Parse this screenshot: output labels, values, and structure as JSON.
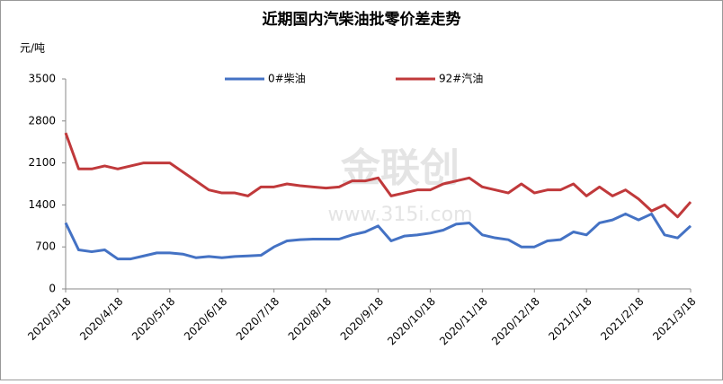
{
  "chart_data": {
    "type": "line",
    "title": "近期国内汽柴油批零价差走势",
    "y_label": "元/吨",
    "watermark": [
      "金联创",
      "www.315i.com"
    ],
    "categories": [
      "2020/3/18",
      null,
      null,
      null,
      "2020/4/18",
      null,
      null,
      null,
      "2020/5/18",
      null,
      null,
      null,
      "2020/6/18",
      null,
      null,
      null,
      "2020/7/18",
      null,
      null,
      null,
      "2020/8/18",
      null,
      null,
      null,
      "2020/9/18",
      null,
      null,
      null,
      "2020/10/18",
      null,
      null,
      null,
      "2020/11/18",
      null,
      null,
      null,
      "2020/12/18",
      null,
      null,
      null,
      "2021/1/18",
      null,
      null,
      null,
      "2021/2/18",
      null,
      null,
      null,
      "2021/3/18"
    ],
    "series": [
      {
        "name": "0#柴油",
        "color": "#4472c4",
        "values": [
          1100,
          650,
          620,
          650,
          500,
          500,
          550,
          600,
          600,
          580,
          520,
          540,
          520,
          540,
          550,
          560,
          700,
          800,
          820,
          830,
          830,
          830,
          900,
          950,
          1050,
          800,
          880,
          900,
          930,
          980,
          1080,
          1100,
          900,
          850,
          820,
          700,
          700,
          800,
          820,
          950,
          900,
          1100,
          1150,
          1250,
          1150,
          1250,
          900,
          850,
          1050
        ]
      },
      {
        "name": "92#汽油",
        "color": "#c0393b",
        "values": [
          2600,
          2000,
          2000,
          2050,
          2000,
          2050,
          2100,
          2100,
          2100,
          1950,
          1800,
          1650,
          1600,
          1600,
          1550,
          1700,
          1700,
          1750,
          1720,
          1700,
          1680,
          1700,
          1800,
          1800,
          1850,
          1550,
          1600,
          1650,
          1650,
          1750,
          1800,
          1850,
          1700,
          1650,
          1600,
          1750,
          1600,
          1650,
          1650,
          1750,
          1550,
          1700,
          1550,
          1650,
          1500,
          1300,
          1400,
          1200,
          1450
        ]
      }
    ],
    "ylim": [
      0,
      3500
    ],
    "yticks": [
      0,
      700,
      1400,
      2100,
      2800,
      3500
    ]
  }
}
